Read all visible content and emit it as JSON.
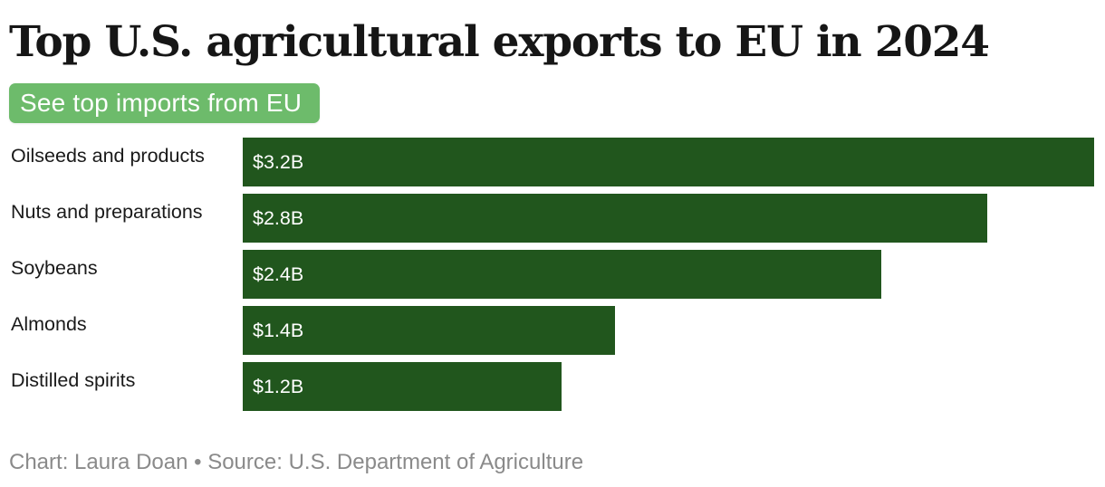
{
  "title": "Top U.S. agricultural exports to EU in 2024",
  "toggle": {
    "label": "See top imports from EU"
  },
  "colors": {
    "bar": "#21561d",
    "toggle_bg": "#6dbb6b",
    "source_text": "#8a8a8a"
  },
  "chart_data": {
    "type": "bar",
    "orientation": "horizontal",
    "categories": [
      "Oilseeds and products",
      "Nuts and preparations",
      "Soybeans",
      "Almonds",
      "Distilled spirits"
    ],
    "values": [
      3.2,
      2.8,
      2.4,
      1.4,
      1.2
    ],
    "value_labels": [
      "$3.2B",
      "$2.8B",
      "$2.4B",
      "$1.4B",
      "$1.2B"
    ],
    "unit": "billion USD",
    "xlim": [
      0,
      3.2
    ],
    "grid": false,
    "legend": "none"
  },
  "source": "Chart: Laura Doan • Source: U.S. Department of Agriculture"
}
